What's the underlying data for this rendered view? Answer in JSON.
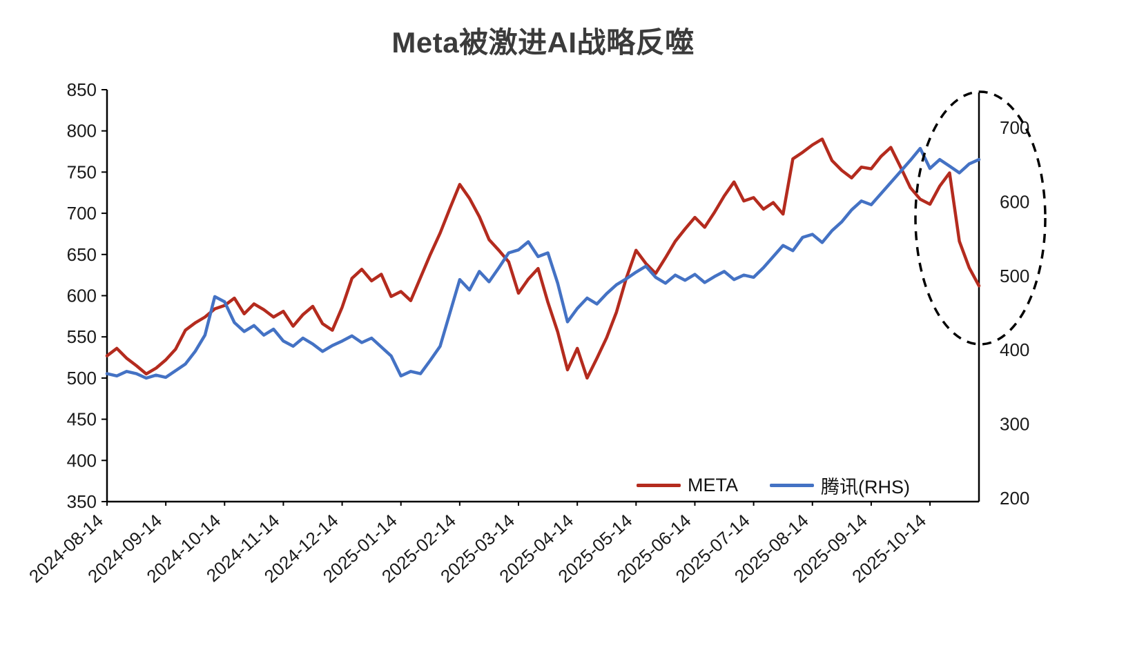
{
  "chart_data": {
    "type": "line",
    "title": "Meta被激进AI战略反噬",
    "n_points": 90,
    "x_tick_labels": [
      "2024-08-14",
      "2024-09-14",
      "2024-10-14",
      "2024-11-14",
      "2024-12-14",
      "2025-01-14",
      "2025-02-14",
      "2025-03-14",
      "2025-04-14",
      "2025-05-14",
      "2025-06-14",
      "2025-07-14",
      "2025-08-14",
      "2025-09-14",
      "2025-10-14"
    ],
    "x_tick_indices": [
      0,
      6,
      12,
      18,
      24,
      30,
      36,
      42,
      48,
      54,
      60,
      66,
      72,
      78,
      84
    ],
    "left_axis": {
      "min": 350,
      "max": 850,
      "ticks": [
        850,
        800,
        750,
        700,
        650,
        600,
        550,
        500,
        450,
        400,
        350
      ]
    },
    "right_axis": {
      "min": 200,
      "max": 700,
      "ticks": [
        700,
        600,
        500,
        400,
        300,
        200
      ]
    },
    "grid": false,
    "legend_position": "bottom-right-inside",
    "series": [
      {
        "name": "META",
        "axis": "left",
        "color": "#b42b1e",
        "values": [
          527,
          536,
          524,
          515,
          505,
          512,
          522,
          535,
          558,
          567,
          574,
          584,
          588,
          597,
          578,
          590,
          583,
          574,
          581,
          563,
          577,
          587,
          566,
          558,
          586,
          621,
          632,
          618,
          626,
          599,
          605,
          594,
          622,
          650,
          676,
          706,
          735,
          718,
          696,
          668,
          655,
          641,
          603,
          620,
          633,
          592,
          556,
          510,
          536,
          500,
          524,
          549,
          580,
          621,
          655,
          639,
          627,
          646,
          666,
          681,
          695,
          683,
          701,
          721,
          738,
          715,
          719,
          705,
          713,
          699,
          766,
          774,
          783,
          790,
          764,
          752,
          743,
          756,
          754,
          769,
          780,
          756,
          731,
          717,
          711,
          733,
          749,
          666,
          634,
          612
        ]
      },
      {
        "name": "腾讯(RHS)",
        "axis": "right",
        "color": "#4472c4",
        "values": [
          368,
          365,
          371,
          368,
          362,
          366,
          363,
          372,
          381,
          398,
          420,
          472,
          465,
          437,
          425,
          433,
          420,
          428,
          412,
          405,
          416,
          408,
          398,
          406,
          412,
          419,
          410,
          416,
          404,
          392,
          365,
          371,
          368,
          386,
          405,
          450,
          495,
          481,
          506,
          492,
          511,
          531,
          535,
          546,
          526,
          531,
          490,
          438,
          456,
          470,
          462,
          476,
          488,
          496,
          505,
          513,
          498,
          490,
          501,
          494,
          502,
          491,
          499,
          506,
          495,
          501,
          498,
          511,
          526,
          541,
          534,
          552,
          556,
          545,
          561,
          573,
          589,
          601,
          596,
          611,
          626,
          641,
          656,
          672,
          645,
          657,
          648,
          639,
          651,
          657
        ]
      }
    ],
    "annotation": {
      "shape": "dashed-ellipse",
      "color": "#000000"
    }
  }
}
